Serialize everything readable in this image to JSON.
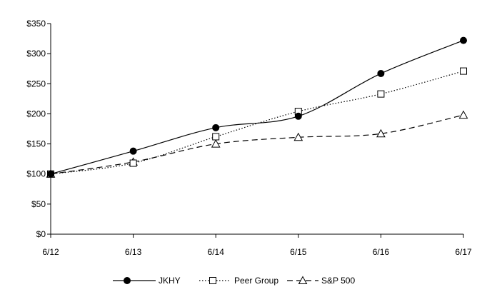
{
  "chart_data": {
    "type": "line",
    "categories": [
      "6/12",
      "6/13",
      "6/14",
      "6/15",
      "6/16",
      "6/17"
    ],
    "ylim": [
      0,
      350
    ],
    "yticks": [
      0,
      50,
      100,
      150,
      200,
      250,
      300,
      350
    ],
    "ytick_labels": [
      "$0",
      "$50",
      "$100",
      "$150",
      "$200",
      "$250",
      "$300",
      "$350"
    ],
    "grid": false,
    "legend_position": "bottom",
    "series": [
      {
        "name": "JKHY",
        "values": [
          100,
          138,
          177,
          196,
          267,
          322
        ],
        "line_style": "solid",
        "marker": "filled-circle"
      },
      {
        "name": "Peer Group",
        "values": [
          100,
          118,
          162,
          204,
          233,
          271
        ],
        "line_style": "dotted",
        "marker": "open-square"
      },
      {
        "name": "S&P 500",
        "values": [
          100,
          120,
          150,
          161,
          167,
          198
        ],
        "line_style": "dashed",
        "marker": "open-triangle"
      }
    ],
    "colors": {
      "line": "#000000",
      "background": "#ffffff"
    }
  }
}
